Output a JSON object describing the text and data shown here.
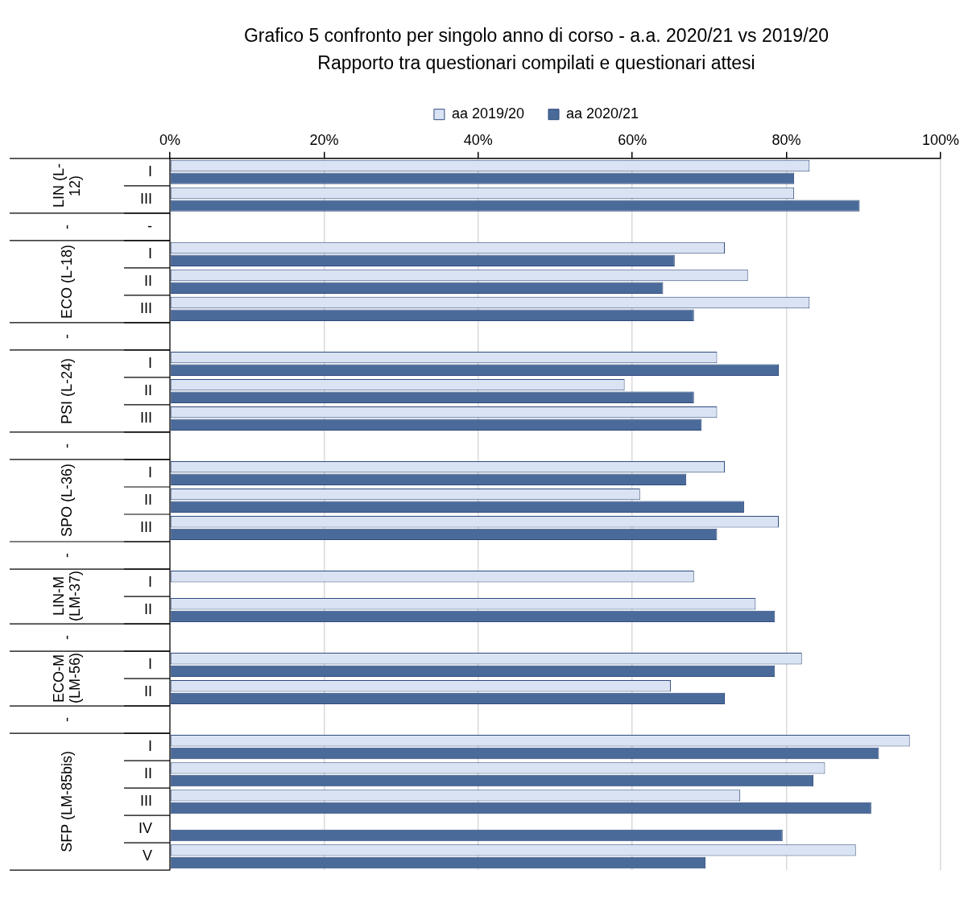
{
  "chart_data": {
    "type": "bar",
    "orientation": "horizontal",
    "title": "Grafico 5 confronto per singolo anno di corso - a.a. 2020/21 vs 2019/20",
    "subtitle": "Rapporto tra questionari compilati e questionari attesi",
    "categories": [
      "I",
      "III",
      "-",
      "I",
      "II",
      "III",
      null,
      "I",
      "II",
      "III",
      null,
      "I",
      "II",
      "III",
      null,
      "I",
      "II",
      null,
      "I",
      "II",
      null,
      "I",
      "II",
      "III",
      "IV",
      "V"
    ],
    "series": [
      {
        "name": "aa 2019/20",
        "color": "#dae3f3",
        "values": [
          83,
          81,
          null,
          72,
          75,
          83,
          null,
          71,
          59,
          71,
          null,
          72,
          61,
          79,
          null,
          68,
          76,
          null,
          82,
          65,
          null,
          96,
          85,
          74,
          null,
          89
        ]
      },
      {
        "name": "aa 2020/21",
        "color": "#4a6a9a",
        "values": [
          81,
          89.5,
          null,
          65.5,
          64,
          68,
          null,
          79,
          68,
          69,
          null,
          67,
          74.5,
          71,
          null,
          null,
          78.5,
          null,
          78.5,
          72,
          null,
          92,
          83.5,
          91,
          79.5,
          69.5
        ]
      }
    ],
    "annotations": [
      "LIN (L-12)",
      "-",
      "ECO (L-18)",
      "-",
      "PSI (L-24)",
      "-",
      "SPO (L-36)",
      "-",
      "LIN-M (LM-37)",
      "-",
      "ECO-M (LM-56)",
      "-",
      "SFP (LM-85bis)"
    ],
    "xlim": [
      0,
      100
    ],
    "xticks": [
      {
        "value": 0,
        "label": "0%"
      },
      {
        "value": 20,
        "label": "20%"
      },
      {
        "value": 40,
        "label": "40%"
      },
      {
        "value": 60,
        "label": "60%"
      },
      {
        "value": 80,
        "label": "80%"
      },
      {
        "value": 100,
        "label": "100%"
      }
    ],
    "grid": "x",
    "legend": "top"
  }
}
